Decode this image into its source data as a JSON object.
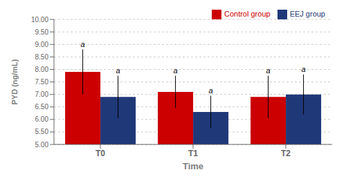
{
  "chart_data": {
    "type": "bar",
    "categories": [
      "T0",
      "T1",
      "T2"
    ],
    "series": [
      {
        "name": "Control group",
        "color": "#CC0000",
        "values": [
          7.9,
          7.1,
          6.9
        ],
        "errors": [
          0.9,
          0.65,
          0.85
        ],
        "annotations": [
          "a",
          "a",
          "a"
        ]
      },
      {
        "name": "EEJ group",
        "color": "#1F3878",
        "values": [
          6.9,
          6.3,
          7.0
        ],
        "errors": [
          0.85,
          0.65,
          0.8
        ],
        "annotations": [
          "a",
          "a",
          "a"
        ]
      }
    ],
    "xlabel": "Time",
    "ylabel": "PYD (ng/mL)",
    "ylim": [
      5.0,
      10.0
    ],
    "yticks": [
      {
        "value": 5.0,
        "label": "5.00"
      },
      {
        "value": 5.5,
        "label": "5.50"
      },
      {
        "value": 6.0,
        "label": "6.00"
      },
      {
        "value": 6.5,
        "label": "6.50"
      },
      {
        "value": 7.0,
        "label": "7.00"
      },
      {
        "value": 7.5,
        "label": "7.50"
      },
      {
        "value": 8.0,
        "label": "8.00"
      },
      {
        "value": 8.5,
        "label": "8.50"
      },
      {
        "value": 9.0,
        "label": "9.00"
      },
      {
        "value": 9.5,
        "label": "9.50"
      },
      {
        "value": 10.0,
        "label": "10.00"
      }
    ],
    "grid": true,
    "legend": "upper right"
  }
}
